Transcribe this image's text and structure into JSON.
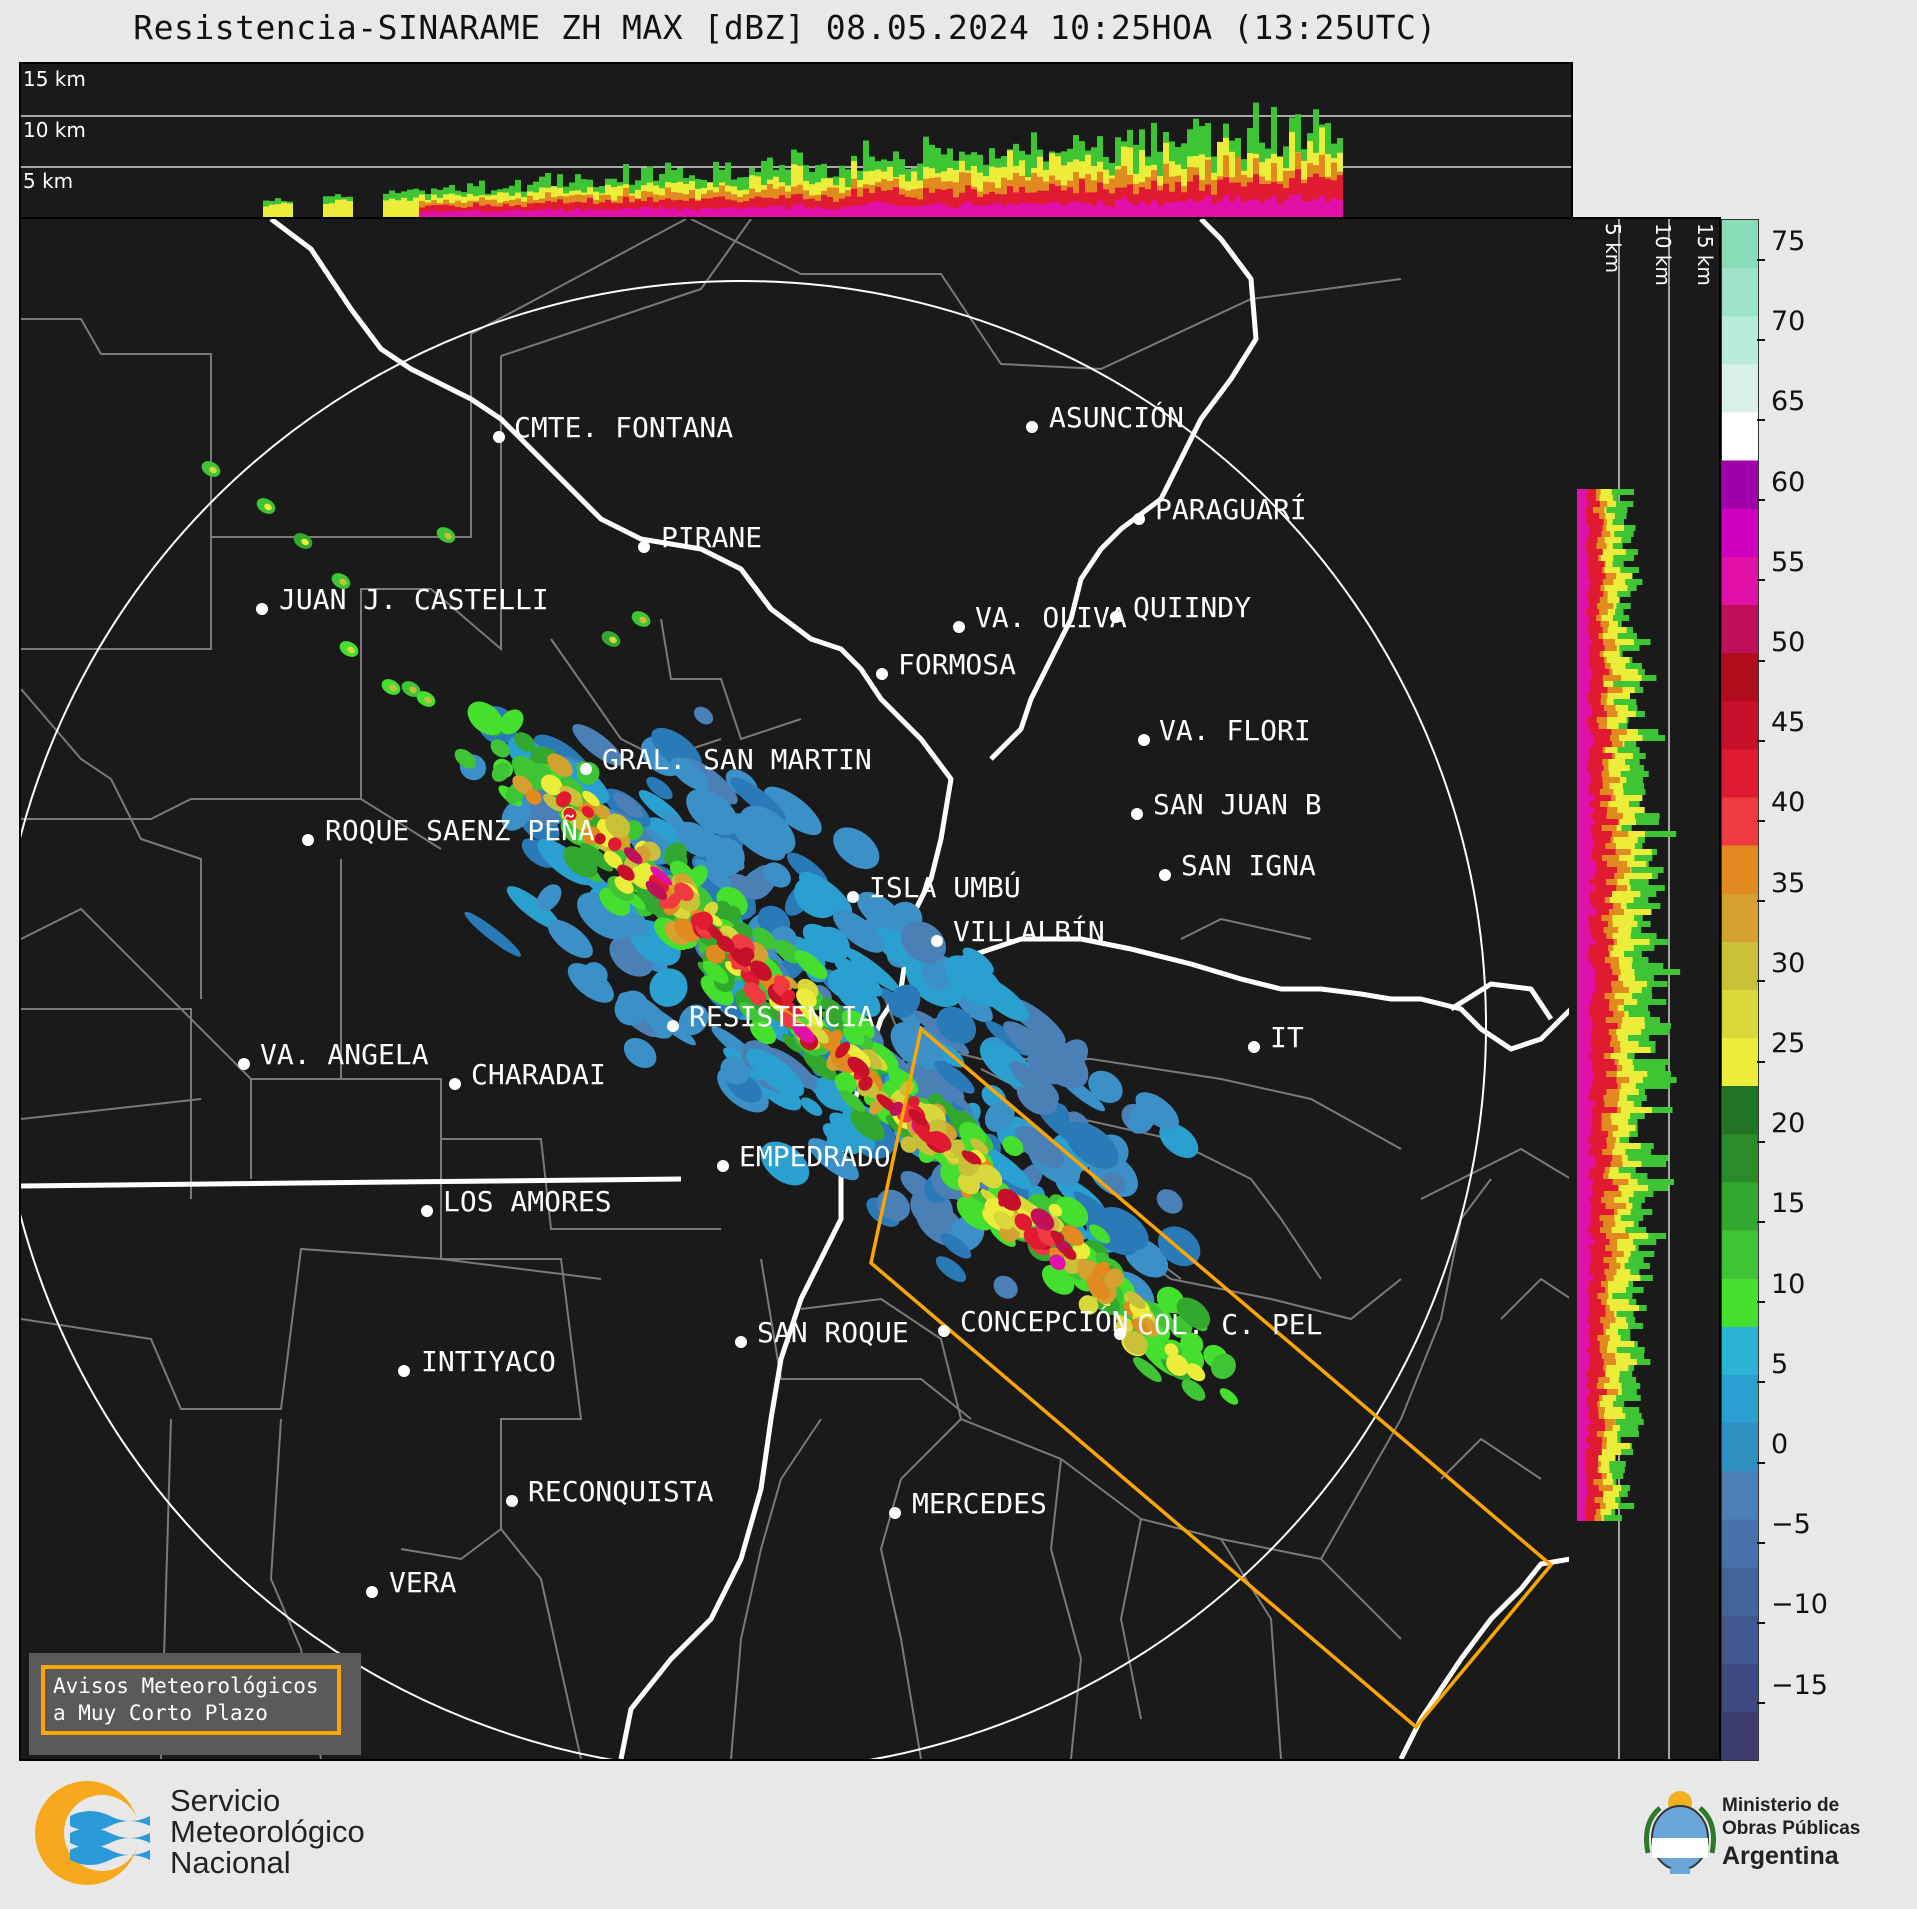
{
  "title": "Resistencia-SINARAME ZH MAX [dBZ] 08.05.2024 10:25HOA (13:25UTC)",
  "top_panel": {
    "height_labels": [
      "15 km",
      "10 km",
      "5 km"
    ]
  },
  "side_panel": {
    "height_labels": [
      "5 km",
      "10 km",
      "15 km"
    ]
  },
  "colorbar": {
    "unit": "dBZ",
    "ticks": [
      "75",
      "70",
      "65",
      "60",
      "55",
      "50",
      "45",
      "40",
      "35",
      "30",
      "25",
      "20",
      "15",
      "10",
      "5",
      "0",
      "−5",
      "−10",
      "−15"
    ],
    "colors": [
      "#3c3c6e",
      "#3e4a80",
      "#41578f",
      "#44649c",
      "#4772a8",
      "#4a80b5",
      "#2f8fc0",
      "#2aa0d0",
      "#2cb4d6",
      "#45e02e",
      "#3ec434",
      "#33a82e",
      "#2a8c28",
      "#227324",
      "#ecec3a",
      "#d8d83a",
      "#c8c038",
      "#d4a030",
      "#e08a20",
      "#ee3a40",
      "#e01a30",
      "#c8102a",
      "#b00c1e",
      "#c0105a",
      "#e010a8",
      "#d000c0",
      "#a000a8",
      "#ffffff",
      "#d8f0e8",
      "#b8ecd8",
      "#9ee4c8",
      "#88dcb8"
    ]
  },
  "cities": [
    {
      "name": "CMTE. FONTANA"
    },
    {
      "name": "ASUNCIÓN"
    },
    {
      "name": "PIRANE"
    },
    {
      "name": "PARAGUARÍ"
    },
    {
      "name": "JUAN J. CASTELLI"
    },
    {
      "name": "VA. OLIVA"
    },
    {
      "name": "QUIINDY"
    },
    {
      "name": "FORMOSA"
    },
    {
      "name": "VA. FLORI"
    },
    {
      "name": "GRAL. SAN MARTIN"
    },
    {
      "name": "SAN JUAN B"
    },
    {
      "name": "ROQUE SAENZ PEÑA"
    },
    {
      "name": "SAN IGNA"
    },
    {
      "name": "ISLA UMBÚ"
    },
    {
      "name": "VILLALBÍN"
    },
    {
      "name": "RESISTENCIA"
    },
    {
      "name": "IT"
    },
    {
      "name": "VA. ANGELA"
    },
    {
      "name": "CHARADAI"
    },
    {
      "name": "EMPEDRADO"
    },
    {
      "name": "LOS AMORES"
    },
    {
      "name": "CONCEPCIÓN"
    },
    {
      "name": "SAN ROQUE"
    },
    {
      "name": "COL. C. PEL"
    },
    {
      "name": "INTIYACO"
    },
    {
      "name": "RECONQUISTA"
    },
    {
      "name": "MERCEDES"
    },
    {
      "name": "VERA"
    }
  ],
  "warning_legend": {
    "line1": "Avisos Meteorológicos",
    "line2": "a Muy Corto Plazo",
    "color": "#ffa500"
  },
  "footer": {
    "smn": [
      "Servicio",
      "Meteorológico",
      "Nacional"
    ],
    "ministry": [
      "Ministerio de",
      "Obras Públicas",
      "Argentina"
    ]
  }
}
